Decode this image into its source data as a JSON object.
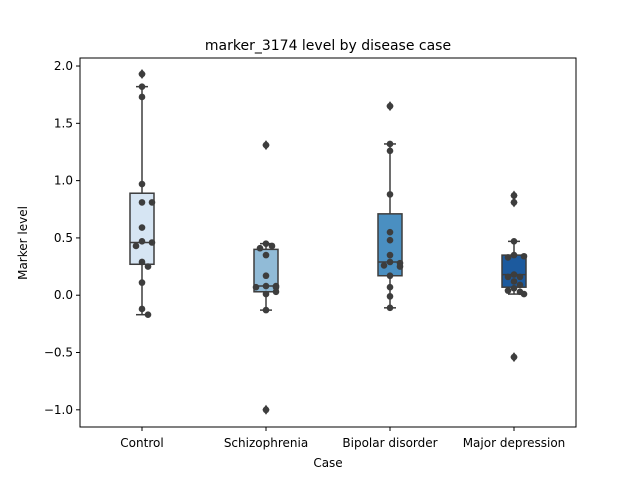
{
  "chart_data": {
    "type": "box",
    "title": "marker_3174 level by disease case",
    "xlabel": "Case",
    "ylabel": "Marker level",
    "categories": [
      "Control",
      "Schizophrenia",
      "Bipolar disorder",
      "Major depression"
    ],
    "ylim": [
      -1.15,
      2.07
    ],
    "yticks": [
      -1.0,
      -0.5,
      0.0,
      0.5,
      1.0,
      1.5,
      2.0
    ],
    "ytick_labels": [
      "−1.0",
      "−0.5",
      "0.0",
      "0.5",
      "1.0",
      "1.5",
      "2.0"
    ],
    "grid": false,
    "colors": [
      "#d6e5f3",
      "#91bbd7",
      "#4a8fc1",
      "#1c5a9e"
    ],
    "boxes": [
      {
        "q1": 0.27,
        "median": 0.46,
        "q3": 0.89,
        "whisker_low": -0.17,
        "whisker_high": 1.82,
        "outliers": [
          1.93
        ]
      },
      {
        "q1": 0.03,
        "median": 0.08,
        "q3": 0.4,
        "whisker_low": -0.13,
        "whisker_high": 0.45,
        "outliers": [
          1.31,
          -1.0
        ]
      },
      {
        "q1": 0.17,
        "median": 0.29,
        "q3": 0.71,
        "whisker_low": -0.11,
        "whisker_high": 1.32,
        "outliers": [
          1.65
        ]
      },
      {
        "q1": 0.07,
        "median": 0.18,
        "q3": 0.35,
        "whisker_low": 0.01,
        "whisker_high": 0.47,
        "outliers": [
          0.87,
          0.81,
          -0.54
        ]
      }
    ],
    "points": [
      [
        1.93,
        1.82,
        1.73,
        0.97,
        0.81,
        0.81,
        0.59,
        0.47,
        0.46,
        0.43,
        0.29,
        0.25,
        0.11,
        -0.12,
        -0.17
      ],
      [
        1.31,
        0.45,
        0.43,
        0.41,
        0.35,
        0.17,
        0.08,
        0.08,
        0.07,
        0.07,
        0.03,
        0.01,
        -0.13,
        -1.0
      ],
      [
        1.65,
        1.32,
        1.26,
        0.88,
        0.55,
        0.48,
        0.35,
        0.29,
        0.28,
        0.26,
        0.25,
        0.17,
        0.07,
        -0.01,
        -0.11
      ],
      [
        0.87,
        0.81,
        0.47,
        0.35,
        0.34,
        0.33,
        0.18,
        0.16,
        0.16,
        0.12,
        0.09,
        0.06,
        0.04,
        0.03,
        0.01,
        -0.54
      ]
    ]
  }
}
